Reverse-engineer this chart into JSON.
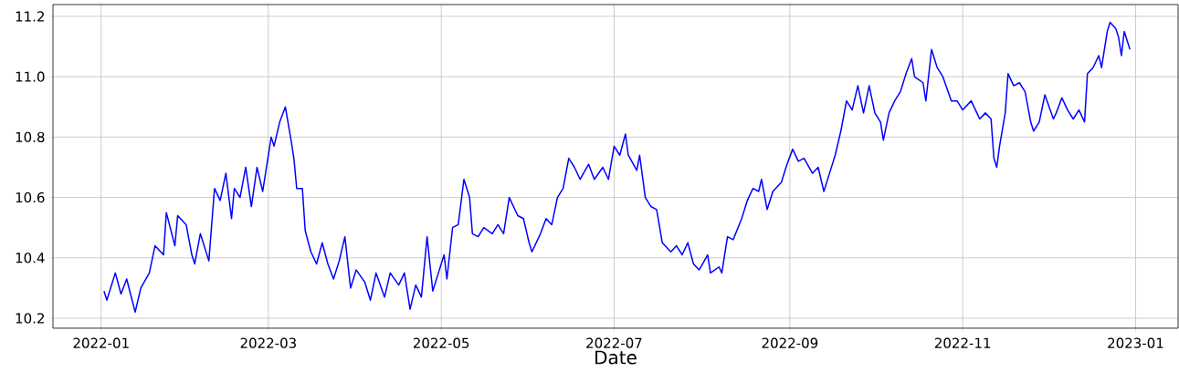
{
  "chart_data": {
    "type": "line",
    "xlabel": "Date",
    "x": [
      "2022-01-02",
      "2022-01-03",
      "2022-01-06",
      "2022-01-08",
      "2022-01-10",
      "2022-01-13",
      "2022-01-15",
      "2022-01-18",
      "2022-01-20",
      "2022-01-23",
      "2022-01-24",
      "2022-01-27",
      "2022-01-28",
      "2022-01-31",
      "2022-02-02",
      "2022-02-03",
      "2022-02-05",
      "2022-02-08",
      "2022-02-10",
      "2022-02-12",
      "2022-02-14",
      "2022-02-16",
      "2022-02-17",
      "2022-02-19",
      "2022-02-21",
      "2022-02-23",
      "2022-02-25",
      "2022-02-27",
      "2022-03-02",
      "2022-03-03",
      "2022-03-05",
      "2022-03-07",
      "2022-03-09",
      "2022-03-10",
      "2022-03-11",
      "2022-03-13",
      "2022-03-14",
      "2022-03-16",
      "2022-03-18",
      "2022-03-20",
      "2022-03-22",
      "2022-03-24",
      "2022-03-26",
      "2022-03-28",
      "2022-03-30",
      "2022-04-01",
      "2022-04-04",
      "2022-04-06",
      "2022-04-08",
      "2022-04-11",
      "2022-04-13",
      "2022-04-16",
      "2022-04-18",
      "2022-04-20",
      "2022-04-22",
      "2022-04-24",
      "2022-04-26",
      "2022-04-28",
      "2022-04-30",
      "2022-05-02",
      "2022-05-03",
      "2022-05-05",
      "2022-05-07",
      "2022-05-09",
      "2022-05-11",
      "2022-05-12",
      "2022-05-14",
      "2022-05-16",
      "2022-05-19",
      "2022-05-21",
      "2022-05-23",
      "2022-05-25",
      "2022-05-28",
      "2022-05-30",
      "2022-06-01",
      "2022-06-02",
      "2022-06-05",
      "2022-06-07",
      "2022-06-09",
      "2022-06-11",
      "2022-06-13",
      "2022-06-15",
      "2022-06-17",
      "2022-06-19",
      "2022-06-22",
      "2022-06-24",
      "2022-06-27",
      "2022-06-29",
      "2022-07-01",
      "2022-07-03",
      "2022-07-05",
      "2022-07-06",
      "2022-07-09",
      "2022-07-10",
      "2022-07-12",
      "2022-07-14",
      "2022-07-16",
      "2022-07-18",
      "2022-07-21",
      "2022-07-23",
      "2022-07-25",
      "2022-07-27",
      "2022-07-29",
      "2022-07-31",
      "2022-08-03",
      "2022-08-04",
      "2022-08-07",
      "2022-08-08",
      "2022-08-10",
      "2022-08-12",
      "2022-08-15",
      "2022-08-17",
      "2022-08-19",
      "2022-08-21",
      "2022-08-22",
      "2022-08-24",
      "2022-08-26",
      "2022-08-29",
      "2022-08-31",
      "2022-09-02",
      "2022-09-04",
      "2022-09-06",
      "2022-09-09",
      "2022-09-11",
      "2022-09-13",
      "2022-09-15",
      "2022-09-17",
      "2022-09-19",
      "2022-09-21",
      "2022-09-23",
      "2022-09-25",
      "2022-09-27",
      "2022-09-29",
      "2022-10-01",
      "2022-10-03",
      "2022-10-04",
      "2022-10-06",
      "2022-10-08",
      "2022-10-10",
      "2022-10-12",
      "2022-10-14",
      "2022-10-15",
      "2022-10-18",
      "2022-10-19",
      "2022-10-21",
      "2022-10-23",
      "2022-10-25",
      "2022-10-28",
      "2022-10-30",
      "2022-11-01",
      "2022-11-04",
      "2022-11-06",
      "2022-11-07",
      "2022-11-09",
      "2022-11-11",
      "2022-11-12",
      "2022-11-13",
      "2022-11-14",
      "2022-11-16",
      "2022-11-17",
      "2022-11-19",
      "2022-11-21",
      "2022-11-23",
      "2022-11-25",
      "2022-11-26",
      "2022-11-28",
      "2022-11-30",
      "2022-12-03",
      "2022-12-04",
      "2022-12-06",
      "2022-12-08",
      "2022-12-10",
      "2022-12-12",
      "2022-12-14",
      "2022-12-15",
      "2022-12-17",
      "2022-12-19",
      "2022-12-20",
      "2022-12-22",
      "2022-12-23",
      "2022-12-25",
      "2022-12-26",
      "2022-12-27",
      "2022-12-28",
      "2022-12-30"
    ],
    "series": [
      {
        "color": "#0000ff",
        "values": [
          10.29,
          10.26,
          10.35,
          10.28,
          10.33,
          10.22,
          10.3,
          10.35,
          10.44,
          10.41,
          10.55,
          10.44,
          10.54,
          10.51,
          10.41,
          10.38,
          10.48,
          10.39,
          10.63,
          10.59,
          10.68,
          10.53,
          10.63,
          10.6,
          10.7,
          10.57,
          10.7,
          10.62,
          10.8,
          10.77,
          10.85,
          10.9,
          10.79,
          10.73,
          10.63,
          10.63,
          10.49,
          10.42,
          10.38,
          10.45,
          10.38,
          10.33,
          10.39,
          10.47,
          10.3,
          10.36,
          10.32,
          10.26,
          10.35,
          10.27,
          10.35,
          10.31,
          10.35,
          10.23,
          10.31,
          10.27,
          10.47,
          10.29,
          10.35,
          10.41,
          10.33,
          10.5,
          10.51,
          10.66,
          10.6,
          10.48,
          10.47,
          10.5,
          10.48,
          10.51,
          10.48,
          10.6,
          10.54,
          10.53,
          10.45,
          10.42,
          10.48,
          10.53,
          10.51,
          10.6,
          10.63,
          10.73,
          10.7,
          10.66,
          10.71,
          10.66,
          10.7,
          10.66,
          10.77,
          10.74,
          10.81,
          10.74,
          10.69,
          10.74,
          10.6,
          10.57,
          10.56,
          10.45,
          10.42,
          10.44,
          10.41,
          10.45,
          10.38,
          10.36,
          10.41,
          10.35,
          10.37,
          10.35,
          10.47,
          10.46,
          10.53,
          10.59,
          10.63,
          10.62,
          10.66,
          10.56,
          10.62,
          10.65,
          10.71,
          10.76,
          10.72,
          10.73,
          10.68,
          10.7,
          10.62,
          10.68,
          10.74,
          10.82,
          10.92,
          10.89,
          10.97,
          10.88,
          10.97,
          10.88,
          10.85,
          10.79,
          10.88,
          10.92,
          10.95,
          11.01,
          11.06,
          11.0,
          10.98,
          10.92,
          11.09,
          11.03,
          11.0,
          10.92,
          10.92,
          10.89,
          10.92,
          10.88,
          10.86,
          10.88,
          10.86,
          10.73,
          10.7,
          10.77,
          10.88,
          11.01,
          10.97,
          10.98,
          10.95,
          10.85,
          10.82,
          10.85,
          10.94,
          10.86,
          10.88,
          10.93,
          10.89,
          10.86,
          10.89,
          10.85,
          11.01,
          11.03,
          11.07,
          11.03,
          11.15,
          11.18,
          11.16,
          11.13,
          11.07,
          11.15,
          11.09
        ]
      }
    ],
    "xlim": [
      "2021-12-15",
      "2023-01-16"
    ],
    "xticks": [
      "2022-01",
      "2022-03",
      "2022-05",
      "2022-07",
      "2022-09",
      "2022-11",
      "2023-01"
    ],
    "ylim": [
      10.167,
      11.239
    ],
    "yticks": [
      {
        "value": 10.2,
        "label": "10.2"
      },
      {
        "value": 10.4,
        "label": "10.4"
      },
      {
        "value": 10.6,
        "label": "10.6"
      },
      {
        "value": 10.8,
        "label": "10.8"
      },
      {
        "value": 11.0,
        "label": "11.0"
      },
      {
        "value": 11.2,
        "label": "11.2"
      }
    ],
    "grid": true,
    "marker": "none",
    "line_style": "solid"
  }
}
